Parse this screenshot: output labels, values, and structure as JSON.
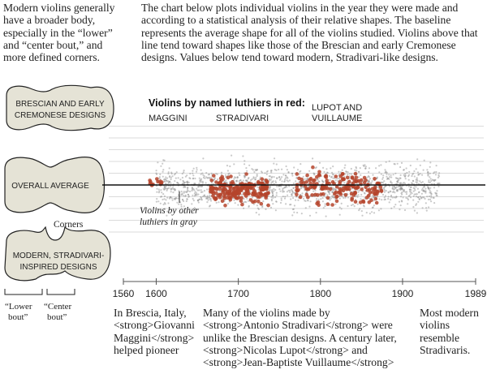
{
  "intro_left": "Modern violins generally have a broader body, especially in the “lower” and “center bout,” and more defined corners.",
  "intro_right": "The chart below plots individual violins in the year they were made and according to a statistical analysis of their relative shapes. The baseline represents the average shape for all of the violins studied. Violins above that line tend toward shapes like those of the Brescian and early Cremonese designs. Values below tend toward modern, Stradivari-like designs.",
  "shapes": {
    "brescian": [
      "BRESCIAN AND EARLY",
      "CREMONESE DESIGNS"
    ],
    "average": "OVERALL AVERAGE",
    "modern": [
      "MODERN, STRADIVARI-",
      "INSPIRED DESIGNS"
    ],
    "corners": "Corners",
    "lower_bout": [
      "“Lower",
      "bout”"
    ],
    "center_bout": [
      "“Center",
      "bout”"
    ]
  },
  "chart_data": {
    "type": "scatter",
    "title": "Violins by named luthiers in red:",
    "xlim": [
      1560,
      1989
    ],
    "x_ticks": [
      "1560",
      "1600",
      "1700",
      "1800",
      "1900",
      "1989"
    ],
    "gray_note": [
      "Violins by other",
      "luthiers in gray"
    ],
    "series": [
      {
        "name": "MAGGINI",
        "color": "#b5442c",
        "x_range": [
          1590,
          1612
        ],
        "y_range": [
          -0.2,
          0.8
        ],
        "count": 12
      },
      {
        "name": "STRADIVARI",
        "color": "#b5442c",
        "x_range": [
          1666,
          1737
        ],
        "y_range": [
          -1.8,
          0.9
        ],
        "count": 200
      },
      {
        "name": "LUPOT AND VUILLAUME",
        "color": "#b5442c",
        "x_range": [
          1770,
          1875
        ],
        "y_range": [
          -2.0,
          1.5
        ],
        "count": 170
      },
      {
        "name": "",
        "color": "#8a8a8a",
        "x_range": [
          1600,
          1945
        ],
        "y_range": [
          -2.6,
          2.2
        ],
        "count": 1600
      }
    ]
  },
  "captions": {
    "brescia": "In Brescia, Italy, <strong>Giovanni Maggini</strong> helped pioneer",
    "stradivari": "Many of the violins made by <strong>Antonio Stradivari</strong> were unlike the Brescian designs. A century later, <strong>Nicolas Lupot</strong> and <strong>Jean-Baptiste Vuillaume</strong>",
    "modern": "Most modern violins resemble Stradivaris."
  },
  "colors": {
    "red": "#b5442c",
    "gray": "#8a8a8a",
    "shape_fill": "#e5e3d6",
    "grid": "#cfcfcf"
  }
}
